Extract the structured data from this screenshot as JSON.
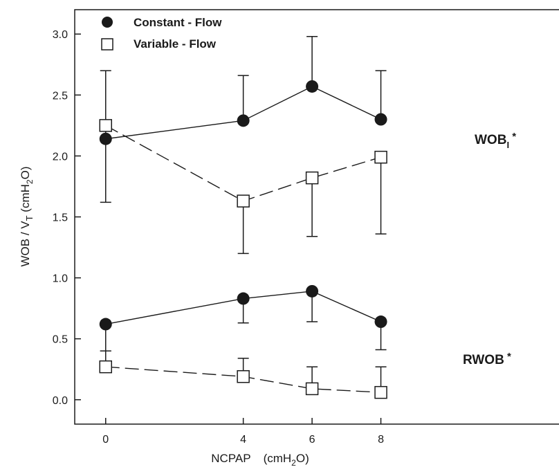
{
  "chart_data": {
    "type": "line",
    "title": "",
    "xlabel": {
      "main": "NCPAP",
      "unit_open": "(cmH",
      "unit_sub": "2",
      "unit_close": "O)"
    },
    "ylabel": {
      "p1": "WOB / V",
      "sub1": "T",
      "p2": " (cmH",
      "sub2": "2",
      "p3": "O)"
    },
    "x_ticks": [
      "0",
      "4",
      "6",
      "8"
    ],
    "y_ticks": [
      "0.0",
      "0.5",
      "1.0",
      "1.5",
      "2.0",
      "2.5",
      "3.0"
    ],
    "xlim": [
      -0.9,
      13.5
    ],
    "ylim": [
      -0.2,
      3.2
    ],
    "legend": [
      {
        "label": "Constant - Flow",
        "marker": "filled-circle"
      },
      {
        "label": "Variable - Flow",
        "marker": "open-square"
      }
    ],
    "annotations": [
      {
        "text": "WOB",
        "sub": "I",
        "sup": " *",
        "y": 2.1
      },
      {
        "text": "RWOB",
        "sub": "",
        "sup": " *",
        "y": 0.3
      }
    ],
    "series": [
      {
        "group": "WOBI",
        "marker": "filled-circle",
        "line": "solid",
        "x": [
          0,
          4,
          6,
          8
        ],
        "y": [
          2.14,
          2.29,
          2.57,
          2.3
        ],
        "err_hi": [
          2.7,
          2.66,
          2.98,
          2.7
        ],
        "err_lo": [
          1.62,
          null,
          null,
          null
        ]
      },
      {
        "group": "WOBI",
        "marker": "open-square",
        "line": "dashed",
        "x": [
          0,
          4,
          6,
          8
        ],
        "y": [
          2.25,
          1.63,
          1.82,
          1.99
        ],
        "err_hi": [
          null,
          null,
          null,
          null
        ],
        "err_lo": [
          null,
          1.2,
          1.34,
          1.36
        ]
      },
      {
        "group": "RWOB",
        "marker": "filled-circle",
        "line": "solid",
        "x": [
          0,
          4,
          6,
          8
        ],
        "y": [
          0.62,
          0.83,
          0.89,
          0.64
        ],
        "err_hi": [
          null,
          null,
          null,
          null
        ],
        "err_lo": [
          0.4,
          0.63,
          0.64,
          0.41
        ]
      },
      {
        "group": "RWOB",
        "marker": "open-square",
        "line": "dashed",
        "x": [
          0,
          4,
          6,
          8
        ],
        "y": [
          0.27,
          0.19,
          0.09,
          0.06
        ],
        "err_hi": [
          0.4,
          0.34,
          0.27,
          0.27
        ],
        "err_lo": [
          null,
          null,
          null,
          null
        ]
      }
    ],
    "colors": {
      "ink": "#1a1a1a",
      "background": "#ffffff"
    }
  }
}
